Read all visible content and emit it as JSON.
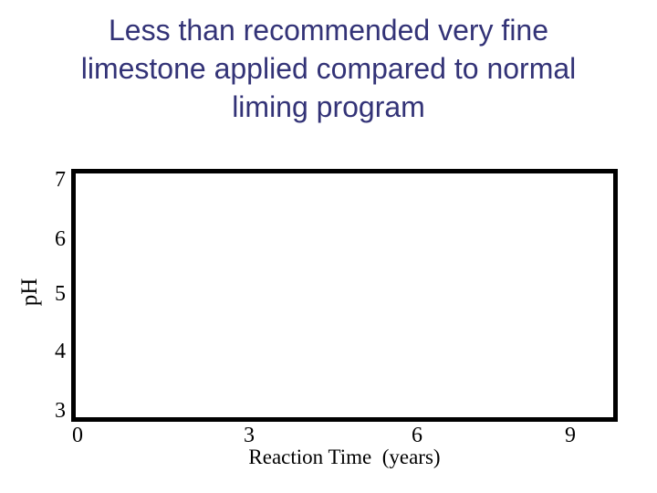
{
  "slide": {
    "title_lines": [
      "Less than recommended very fine",
      "limestone applied compared to normal",
      "liming program"
    ],
    "title_color": "#333377"
  },
  "chart_data": {
    "type": "line",
    "title": "Less than recommended very fine limestone applied compared to normal liming program",
    "xlabel": "Reaction Time  (years)",
    "ylabel": "pH",
    "xticks": [
      "0",
      "3",
      "6",
      "9"
    ],
    "yticks": [
      "7",
      "6",
      "5",
      "4",
      "3"
    ],
    "xlim": [
      0,
      9.5
    ],
    "ylim": [
      2.8,
      7.2
    ],
    "grid": false,
    "legend": false,
    "series": [],
    "frame_color": "#000000"
  }
}
